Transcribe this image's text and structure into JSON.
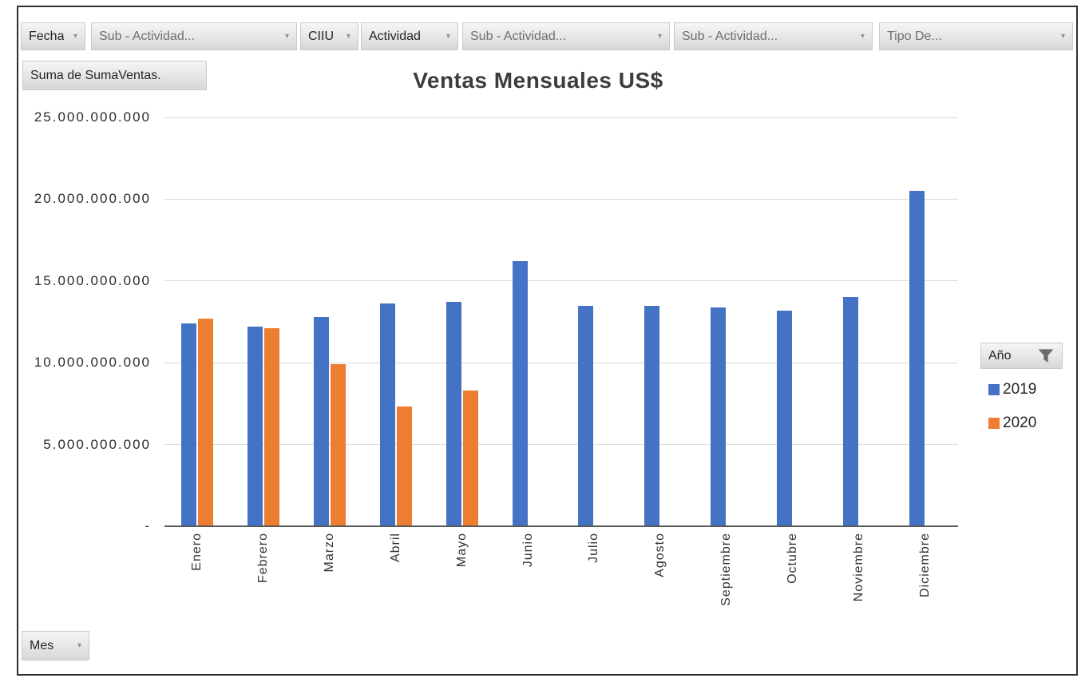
{
  "top_field_buttons": [
    {
      "label": "Fecha"
    },
    {
      "label": "Sub - Actividad..."
    },
    {
      "label": "CIIU"
    },
    {
      "label": "Actividad"
    },
    {
      "label": "Sub - Actividad..."
    },
    {
      "label": "Sub - Actividad..."
    },
    {
      "label": "Tipo De..."
    }
  ],
  "value_field_button": {
    "label": "Suma de SumaVentas."
  },
  "axis_field_button": {
    "label": "Mes"
  },
  "legend_field_button": {
    "label": "Año",
    "icon": "filter-funnel-icon"
  },
  "chart_data": {
    "type": "bar",
    "title": "Ventas Mensuales US$",
    "categories": [
      "Enero",
      "Febrero",
      "Marzo",
      "Abril",
      "Mayo",
      "Junio",
      "Julio",
      "Agosto",
      "Septiembre",
      "Octubre",
      "Noviembre",
      "Diciembre"
    ],
    "series": [
      {
        "name": "2019",
        "color": "#4472C4",
        "values": [
          12400000000,
          12200000000,
          12800000000,
          13600000000,
          13700000000,
          16200000000,
          13500000000,
          13500000000,
          13400000000,
          13200000000,
          14000000000,
          20500000000
        ]
      },
      {
        "name": "2020",
        "color": "#ED7D31",
        "values": [
          12700000000,
          12100000000,
          9900000000,
          7300000000,
          8300000000,
          null,
          null,
          null,
          null,
          null,
          null,
          null
        ]
      }
    ],
    "xlabel": "Mes",
    "ylabel": "Suma de SumaVentas.",
    "ylim": [
      0,
      25000000000
    ],
    "y_ticks": [
      {
        "value": 25000000000,
        "label": "25.000.000.000"
      },
      {
        "value": 20000000000,
        "label": "20.000.000.000"
      },
      {
        "value": 15000000000,
        "label": "15.000.000.000"
      },
      {
        "value": 10000000000,
        "label": "10.000.000.000"
      },
      {
        "value": 5000000000,
        "label": "5.000.000.000"
      },
      {
        "value": 0,
        "label": "-"
      }
    ],
    "grid": true,
    "legend_position": "right",
    "x_tick_rotation": -90
  }
}
